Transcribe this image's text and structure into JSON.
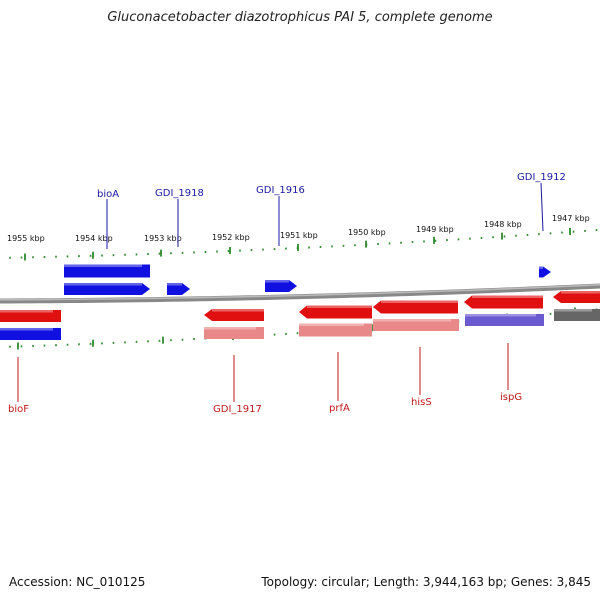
{
  "title": "Gluconacetobacter diazotrophicus PAI 5, complete genome",
  "footer": {
    "accession": "Accession: NC_010125",
    "topology": "Topology: circular; Length: 3,944,163 bp; Genes: 3,845"
  },
  "colors": {
    "forward_gene": "#1010e0",
    "reverse_gene": "#e01010",
    "reverse_gene_light": "#e88888",
    "gene_purple": "#6a5ad0",
    "gene_gray": "#666666",
    "backbone": "#888888",
    "tick": "#2e8b2e",
    "forward_label": "#1a1aa0",
    "reverse_label": "#c01818"
  },
  "scale": {
    "ticks": [
      {
        "label": "1955 kbp"
      },
      {
        "label": "1954 kbp"
      },
      {
        "label": "1953 kbp"
      },
      {
        "label": "1952 kbp"
      },
      {
        "label": "1951 kbp"
      },
      {
        "label": "1950 kbp"
      },
      {
        "label": "1949 kbp"
      },
      {
        "label": "1948 kbp"
      },
      {
        "label": "1947 kbp"
      }
    ]
  },
  "forward_labels": [
    {
      "name": "bioA"
    },
    {
      "name": "GDI_1918"
    },
    {
      "name": "GDI_1916"
    },
    {
      "name": "GDI_1912"
    }
  ],
  "reverse_labels": [
    {
      "name": "bioF"
    },
    {
      "name": "GDI_1917"
    },
    {
      "name": "prfA"
    },
    {
      "name": "hisS"
    },
    {
      "name": "ispG"
    }
  ]
}
